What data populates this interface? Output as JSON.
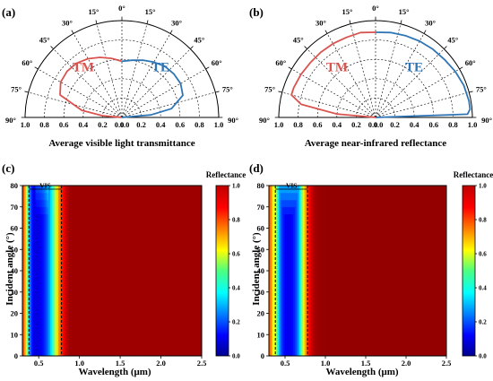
{
  "chart_data": [
    {
      "panel": "(a)",
      "type": "polar",
      "xlabel": "Average visible light transmittance",
      "angle_ticks": [
        "0°",
        "15°",
        "30°",
        "45°",
        "60°",
        "75°",
        "90°"
      ],
      "radial_ticks": [
        "1.0",
        "0.8",
        "0.6",
        "0.4",
        "0.2",
        "0.0",
        "0.0",
        "0.2",
        "0.4",
        "0.6",
        "0.8",
        "1.0"
      ],
      "series": [
        {
          "name": "TM",
          "color": "#d9534f",
          "angles": [
            0,
            10,
            20,
            30,
            40,
            50,
            60,
            70,
            80,
            85,
            90
          ],
          "values": [
            0.58,
            0.62,
            0.66,
            0.7,
            0.73,
            0.74,
            0.73,
            0.68,
            0.42,
            0.2,
            0.0
          ]
        },
        {
          "name": "TE",
          "color": "#2e75b6",
          "angles": [
            0,
            10,
            20,
            30,
            40,
            50,
            60,
            70,
            80,
            85,
            90
          ],
          "values": [
            0.58,
            0.6,
            0.63,
            0.66,
            0.69,
            0.7,
            0.7,
            0.67,
            0.52,
            0.3,
            0.0
          ]
        }
      ]
    },
    {
      "panel": "(b)",
      "type": "polar",
      "xlabel": "Average near-infrared reflectance",
      "angle_ticks": [
        "0°",
        "15°",
        "30°",
        "45°",
        "60°",
        "75°",
        "90°"
      ],
      "radial_ticks": [
        "1.0",
        "0.8",
        "0.6",
        "0.4",
        "0.2",
        "0.0",
        "0.0",
        "0.2",
        "0.4",
        "0.6",
        "0.8",
        "1.0"
      ],
      "series": [
        {
          "name": "TM",
          "color": "#d9534f",
          "angles": [
            0,
            10,
            20,
            30,
            40,
            50,
            60,
            70,
            75,
            80,
            85,
            90
          ],
          "values": [
            0.88,
            0.89,
            0.88,
            0.88,
            0.88,
            0.88,
            0.89,
            0.9,
            0.9,
            0.78,
            0.4,
            0.0
          ]
        },
        {
          "name": "TE",
          "color": "#2e75b6",
          "angles": [
            0,
            10,
            20,
            30,
            40,
            50,
            60,
            70,
            80,
            85,
            88,
            90
          ],
          "values": [
            0.88,
            0.89,
            0.9,
            0.91,
            0.92,
            0.93,
            0.95,
            0.97,
            0.98,
            0.98,
            0.95,
            0.0
          ]
        }
      ]
    },
    {
      "panel": "(c)",
      "type": "heatmap",
      "xlabel": "Wavelength (μm)",
      "ylabel": "Incident angle (°)",
      "xlim": [
        0.3,
        2.5
      ],
      "ylim": [
        0,
        80
      ],
      "xticks": [
        "0.5",
        "1.0",
        "1.5",
        "2.0",
        "2.5"
      ],
      "yticks": [
        "0",
        "10",
        "20",
        "30",
        "40",
        "50",
        "60",
        "70",
        "80"
      ],
      "annotation": "VIS",
      "vis_range": [
        0.38,
        0.78
      ],
      "colorbar_title": "Reflectance",
      "colorbar_ticks": [
        "0.0",
        "0.2",
        "0.4",
        "0.6",
        "0.8",
        "1.0"
      ]
    },
    {
      "panel": "(d)",
      "type": "heatmap",
      "xlabel": "Wavelength (μm)",
      "ylabel": "Incident angle (°)",
      "xlim": [
        0.3,
        2.5
      ],
      "ylim": [
        0,
        80
      ],
      "xticks": [
        "0.5",
        "1.0",
        "1.5",
        "2.0",
        "2.5"
      ],
      "yticks": [
        "0",
        "10",
        "20",
        "30",
        "40",
        "50",
        "60",
        "70",
        "80"
      ],
      "annotation": "VIS",
      "vis_range": [
        0.38,
        0.78
      ],
      "colorbar_title": "Reflectance",
      "colorbar_ticks": [
        "0.0",
        "0.2",
        "0.4",
        "0.6",
        "0.8",
        "1.0"
      ]
    }
  ]
}
